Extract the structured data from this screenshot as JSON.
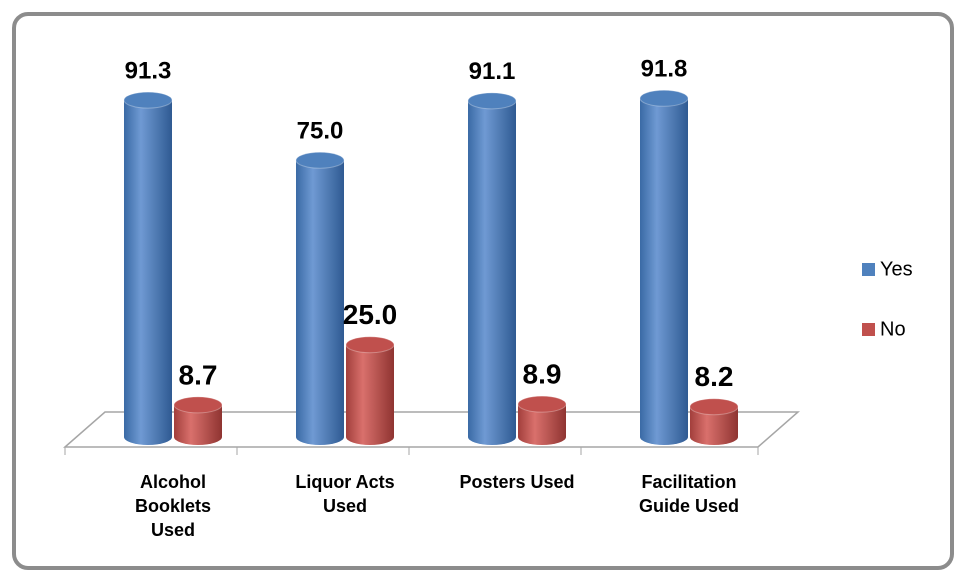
{
  "chart_data": {
    "type": "bar",
    "categories": [
      "Alcohol Booklets Used",
      "Liquor Acts Used",
      "Posters Used",
      "Facilitation Guide Used"
    ],
    "series": [
      {
        "name": "Yes",
        "color": "#4f81bd",
        "values": [
          91.3,
          75,
          91.1,
          91.8
        ],
        "value_labels": [
          "91.3",
          "75.0",
          "91.1",
          "91.8"
        ]
      },
      {
        "name": "No",
        "color": "#c0504d",
        "values": [
          8.7,
          25,
          8.9,
          8.2
        ],
        "value_labels": [
          "8.7",
          "25.0",
          "8.9",
          "8.2"
        ]
      }
    ],
    "legend": "right"
  }
}
